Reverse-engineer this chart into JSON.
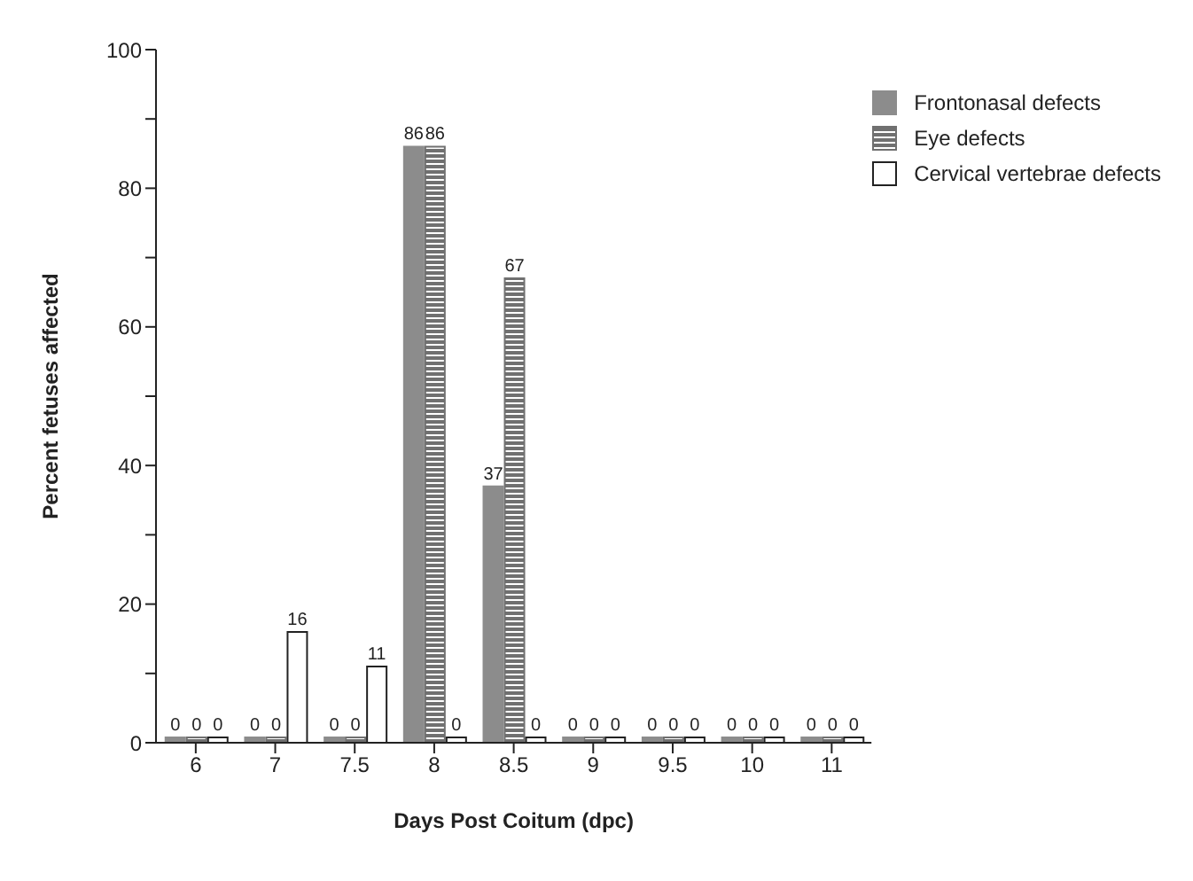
{
  "chart_data": {
    "type": "bar",
    "xlabel": "Days Post Coitum (dpc)",
    "ylabel": "Percent fetuses affected",
    "categories": [
      "6",
      "7",
      "7.5",
      "8",
      "8.5",
      "9",
      "9.5",
      "10",
      "11"
    ],
    "series": [
      {
        "name": "Frontonasal defects",
        "color": "#8c8c8c",
        "values": [
          0,
          0,
          0,
          86,
          37,
          0,
          0,
          0,
          0
        ]
      },
      {
        "name": "Eye defects",
        "color": "#707070",
        "values": [
          0,
          0,
          0,
          86,
          67,
          0,
          0,
          0,
          0
        ]
      },
      {
        "name": "Cervical vertebrae defects",
        "color": "#ffffff",
        "values": [
          0,
          16,
          11,
          0,
          0,
          0,
          0,
          0,
          0
        ]
      }
    ],
    "ylim": [
      0,
      100
    ],
    "yticks": [
      0,
      {
        "value": 10,
        "label": null
      },
      20,
      {
        "value": 30,
        "label": null
      },
      40,
      {
        "value": 50,
        "label": null
      },
      60,
      {
        "value": 70,
        "label": null
      },
      80,
      {
        "value": 90,
        "label": null
      },
      100
    ],
    "data_labels": true,
    "legend": "top right",
    "grid": false
  }
}
